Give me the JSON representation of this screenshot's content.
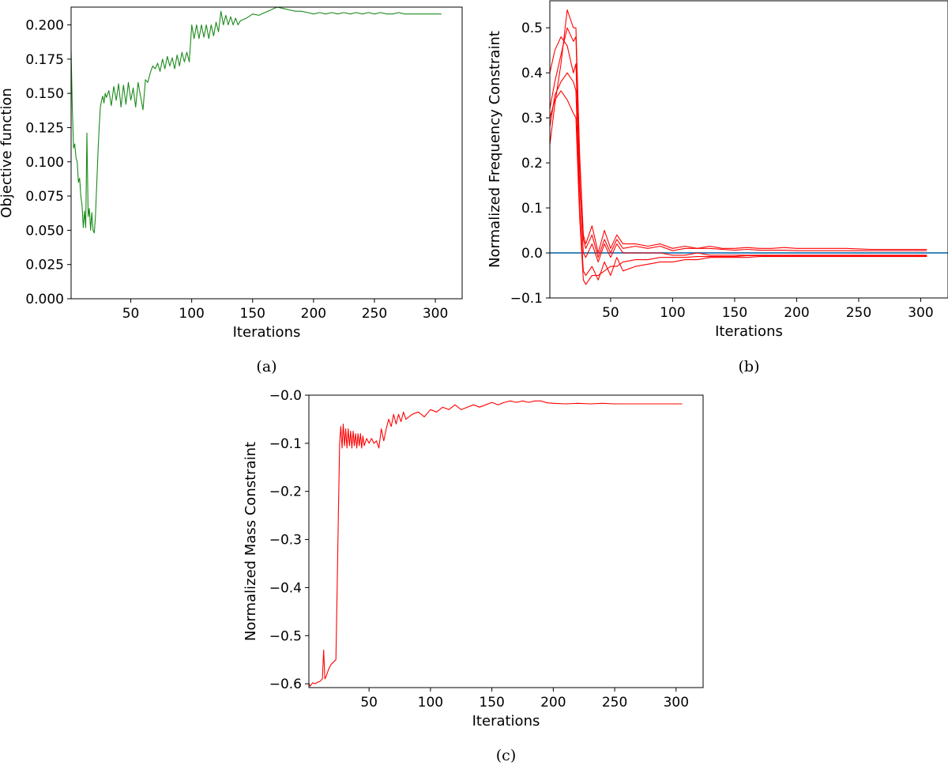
{
  "chart_data": [
    {
      "type": "line",
      "caption": "(a)",
      "xlabel": "Iterations",
      "ylabel": "Objective function",
      "xlim": [
        1,
        322
      ],
      "ylim": [
        0,
        0.213
      ],
      "xticks": [
        50,
        100,
        150,
        200,
        250,
        300
      ],
      "yticks": [
        0,
        0.025,
        0.05,
        0.075,
        0.1,
        0.125,
        0.15,
        0.175,
        0.2
      ],
      "ytick_labels": [
        "0.000",
        "0.025",
        "0.050",
        "0.075",
        "0.100",
        "0.125",
        "0.150",
        "0.175",
        "0.200"
      ],
      "colors": {
        "line": "#1a8a1a"
      },
      "series": [
        {
          "x": [
            1,
            2,
            3,
            4,
            5,
            6,
            7,
            8,
            9,
            10,
            11,
            12,
            13,
            14,
            15,
            16,
            17,
            18,
            19,
            20,
            21,
            22,
            23,
            24,
            25,
            26,
            27,
            28,
            29,
            30,
            32,
            34,
            36,
            38,
            40,
            42,
            44,
            46,
            48,
            50,
            52,
            54,
            56,
            58,
            60,
            62,
            64,
            66,
            68,
            70,
            72,
            74,
            76,
            78,
            80,
            82,
            84,
            86,
            88,
            90,
            92,
            94,
            96,
            98,
            100,
            102,
            104,
            106,
            108,
            110,
            112,
            114,
            116,
            118,
            120,
            122,
            124,
            126,
            128,
            130,
            132,
            134,
            136,
            138,
            140,
            145,
            150,
            155,
            160,
            165,
            170,
            175,
            180,
            185,
            190,
            195,
            200,
            205,
            210,
            215,
            220,
            225,
            230,
            235,
            240,
            245,
            250,
            255,
            260,
            265,
            270,
            275,
            280,
            285,
            290,
            295,
            300,
            305
          ],
          "y": [
            0.181,
            0.14,
            0.11,
            0.113,
            0.103,
            0.1,
            0.085,
            0.088,
            0.075,
            0.068,
            0.052,
            0.064,
            0.052,
            0.121,
            0.06,
            0.066,
            0.05,
            0.063,
            0.05,
            0.048,
            0.06,
            0.083,
            0.105,
            0.125,
            0.14,
            0.145,
            0.148,
            0.143,
            0.15,
            0.147,
            0.152,
            0.141,
            0.155,
            0.145,
            0.157,
            0.14,
            0.156,
            0.142,
            0.158,
            0.145,
            0.154,
            0.14,
            0.158,
            0.148,
            0.138,
            0.16,
            0.158,
            0.165,
            0.17,
            0.168,
            0.172,
            0.166,
            0.175,
            0.168,
            0.177,
            0.17,
            0.176,
            0.168,
            0.178,
            0.17,
            0.18,
            0.173,
            0.18,
            0.173,
            0.2,
            0.19,
            0.2,
            0.19,
            0.2,
            0.191,
            0.2,
            0.19,
            0.2,
            0.192,
            0.202,
            0.195,
            0.21,
            0.2,
            0.207,
            0.2,
            0.206,
            0.2,
            0.205,
            0.2,
            0.203,
            0.205,
            0.208,
            0.207,
            0.209,
            0.211,
            0.213,
            0.212,
            0.211,
            0.21,
            0.21,
            0.209,
            0.208,
            0.209,
            0.208,
            0.209,
            0.208,
            0.209,
            0.208,
            0.209,
            0.208,
            0.209,
            0.208,
            0.209,
            0.208,
            0.208,
            0.209,
            0.208,
            0.208,
            0.208,
            0.208,
            0.208,
            0.208,
            0.208
          ]
        }
      ]
    },
    {
      "type": "line",
      "caption": "(b)",
      "xlabel": "Iterations",
      "ylabel": "Normalized Frequency Constraint",
      "xlim": [
        1,
        322
      ],
      "ylim": [
        -0.1,
        0.56
      ],
      "xticks": [
        50,
        100,
        150,
        200,
        250,
        300
      ],
      "yticks": [
        -0.1,
        0,
        0.1,
        0.2,
        0.3,
        0.4,
        0.5
      ],
      "ytick_labels": [
        "−0.1",
        "0.0",
        "0.1",
        "0.2",
        "0.3",
        "0.4",
        "0.5"
      ],
      "reference_line": 0,
      "colors": {
        "line": "#ff0000",
        "reference": "#1f77b4"
      },
      "series": [
        {
          "x": [
            1,
            5,
            10,
            15,
            20,
            22,
            25,
            28,
            30,
            35,
            40,
            45,
            50,
            55,
            60,
            70,
            80,
            90,
            100,
            110,
            120,
            130,
            140,
            150,
            160,
            170,
            180,
            190,
            200,
            220,
            240,
            260,
            280,
            305
          ],
          "y": [
            0.24,
            0.33,
            0.42,
            0.54,
            0.5,
            0.5,
            0.22,
            0.04,
            0.02,
            0.06,
            0.0,
            0.05,
            0.01,
            0.04,
            0.02,
            0.02,
            0.015,
            0.02,
            0.01,
            0.015,
            0.01,
            0.015,
            0.01,
            0.01,
            0.012,
            0.01,
            0.01,
            0.012,
            0.01,
            0.01,
            0.01,
            0.008,
            0.008,
            0.008
          ]
        },
        {
          "x": [
            1,
            5,
            10,
            15,
            20,
            22,
            25,
            28,
            30,
            35,
            40,
            45,
            50,
            55,
            60,
            70,
            80,
            90,
            100,
            110,
            120,
            130,
            140,
            150,
            160,
            170,
            180,
            190,
            200,
            220,
            240,
            260,
            280,
            305
          ],
          "y": [
            0.32,
            0.38,
            0.44,
            0.5,
            0.47,
            0.48,
            0.2,
            0.03,
            0.01,
            0.04,
            -0.01,
            0.03,
            0.0,
            0.03,
            0.01,
            0.015,
            0.01,
            0.015,
            0.005,
            0.01,
            0.01,
            0.01,
            0.008,
            0.006,
            0.008,
            0.006,
            0.006,
            0.006,
            0.005,
            0.005,
            0.005,
            0.005,
            0.005,
            0.005
          ]
        },
        {
          "x": [
            1,
            5,
            10,
            15,
            20,
            22,
            25,
            28,
            30,
            35,
            40,
            45,
            50,
            55,
            60,
            70,
            80,
            90,
            100,
            110,
            120,
            130,
            140,
            150,
            160,
            170,
            180,
            190,
            200,
            220,
            240,
            260,
            280,
            305
          ],
          "y": [
            0.4,
            0.45,
            0.48,
            0.46,
            0.4,
            0.42,
            0.15,
            0.0,
            -0.01,
            0.02,
            -0.02,
            0.02,
            -0.01,
            0.02,
            0.0,
            0.0,
            0.0,
            0.0,
            -0.005,
            -0.005,
            0.0,
            -0.005,
            -0.005,
            -0.005,
            -0.005,
            -0.005,
            -0.005,
            -0.005,
            -0.005,
            -0.005,
            -0.005,
            -0.005,
            -0.005,
            -0.005
          ]
        },
        {
          "x": [
            1,
            5,
            10,
            15,
            20,
            22,
            25,
            28,
            30,
            35,
            40,
            45,
            50,
            55,
            60,
            70,
            80,
            90,
            100,
            110,
            120,
            130,
            140,
            150,
            160,
            170,
            180,
            190,
            200,
            220,
            240,
            260,
            280,
            305
          ],
          "y": [
            0.28,
            0.35,
            0.38,
            0.4,
            0.38,
            0.36,
            0.1,
            -0.04,
            -0.05,
            -0.03,
            -0.06,
            -0.02,
            -0.05,
            -0.01,
            -0.04,
            -0.03,
            -0.025,
            -0.02,
            -0.02,
            -0.015,
            -0.015,
            -0.01,
            -0.01,
            -0.01,
            -0.01,
            -0.008,
            -0.008,
            -0.008,
            -0.008,
            -0.008,
            -0.008,
            -0.008,
            -0.008,
            -0.008
          ]
        },
        {
          "x": [
            1,
            5,
            10,
            15,
            20,
            22,
            25,
            28,
            30,
            35,
            40,
            45,
            50,
            55,
            60,
            70,
            80,
            90,
            100,
            110,
            120,
            130,
            140,
            150,
            160,
            170,
            180,
            190,
            200,
            220,
            240,
            260,
            280,
            305
          ],
          "y": [
            0.3,
            0.34,
            0.36,
            0.34,
            0.31,
            0.3,
            0.08,
            -0.06,
            -0.07,
            -0.05,
            -0.05,
            -0.04,
            -0.03,
            -0.03,
            -0.02,
            -0.015,
            -0.015,
            -0.01,
            -0.01,
            -0.01,
            -0.008,
            -0.008,
            -0.008,
            -0.008,
            -0.006,
            -0.006,
            -0.006,
            -0.006,
            -0.006,
            -0.006,
            -0.006,
            -0.006,
            -0.006,
            -0.006
          ]
        }
      ]
    },
    {
      "type": "line",
      "caption": "(c)",
      "xlabel": "Iterations",
      "ylabel": "Normalized Mass Constraint",
      "xlim": [
        1,
        322
      ],
      "ylim": [
        -0.608,
        0
      ],
      "xticks": [
        50,
        100,
        150,
        200,
        250,
        300
      ],
      "yticks": [
        -0.6,
        -0.5,
        -0.4,
        -0.3,
        -0.2,
        -0.1,
        0
      ],
      "ytick_labels": [
        "−0.6",
        "−0.5",
        "−0.4",
        "−0.3",
        "−0.2",
        "−0.1",
        "−0.0"
      ],
      "colors": {
        "line": "#ff0000"
      },
      "series": [
        {
          "x": [
            1,
            2,
            4,
            6,
            8,
            10,
            12,
            13,
            14,
            15,
            17,
            19,
            21,
            23,
            24,
            25,
            26,
            27,
            28,
            29,
            30,
            31,
            32,
            33,
            34,
            35,
            36,
            37,
            38,
            39,
            40,
            41,
            42,
            43,
            44,
            45,
            46,
            48,
            50,
            52,
            54,
            56,
            58,
            60,
            62,
            64,
            66,
            68,
            70,
            72,
            74,
            76,
            78,
            80,
            85,
            90,
            95,
            100,
            105,
            110,
            115,
            120,
            125,
            130,
            135,
            140,
            145,
            150,
            155,
            160,
            165,
            170,
            175,
            180,
            185,
            190,
            195,
            200,
            210,
            220,
            230,
            240,
            250,
            260,
            270,
            280,
            290,
            300,
            305
          ],
          "y": [
            -0.6,
            -0.605,
            -0.598,
            -0.6,
            -0.597,
            -0.595,
            -0.59,
            -0.53,
            -0.59,
            -0.585,
            -0.57,
            -0.56,
            -0.555,
            -0.55,
            -0.4,
            -0.25,
            -0.1,
            -0.065,
            -0.11,
            -0.06,
            -0.105,
            -0.07,
            -0.11,
            -0.07,
            -0.105,
            -0.075,
            -0.11,
            -0.075,
            -0.105,
            -0.08,
            -0.11,
            -0.08,
            -0.105,
            -0.08,
            -0.11,
            -0.085,
            -0.105,
            -0.09,
            -0.1,
            -0.09,
            -0.1,
            -0.095,
            -0.11,
            -0.07,
            -0.095,
            -0.07,
            -0.05,
            -0.065,
            -0.04,
            -0.06,
            -0.04,
            -0.055,
            -0.035,
            -0.05,
            -0.04,
            -0.035,
            -0.045,
            -0.03,
            -0.035,
            -0.025,
            -0.03,
            -0.02,
            -0.03,
            -0.025,
            -0.02,
            -0.025,
            -0.02,
            -0.015,
            -0.02,
            -0.015,
            -0.012,
            -0.015,
            -0.012,
            -0.015,
            -0.012,
            -0.012,
            -0.016,
            -0.017,
            -0.018,
            -0.017,
            -0.018,
            -0.017,
            -0.018,
            -0.018,
            -0.018,
            -0.018,
            -0.018,
            -0.018,
            -0.018
          ]
        }
      ]
    }
  ]
}
